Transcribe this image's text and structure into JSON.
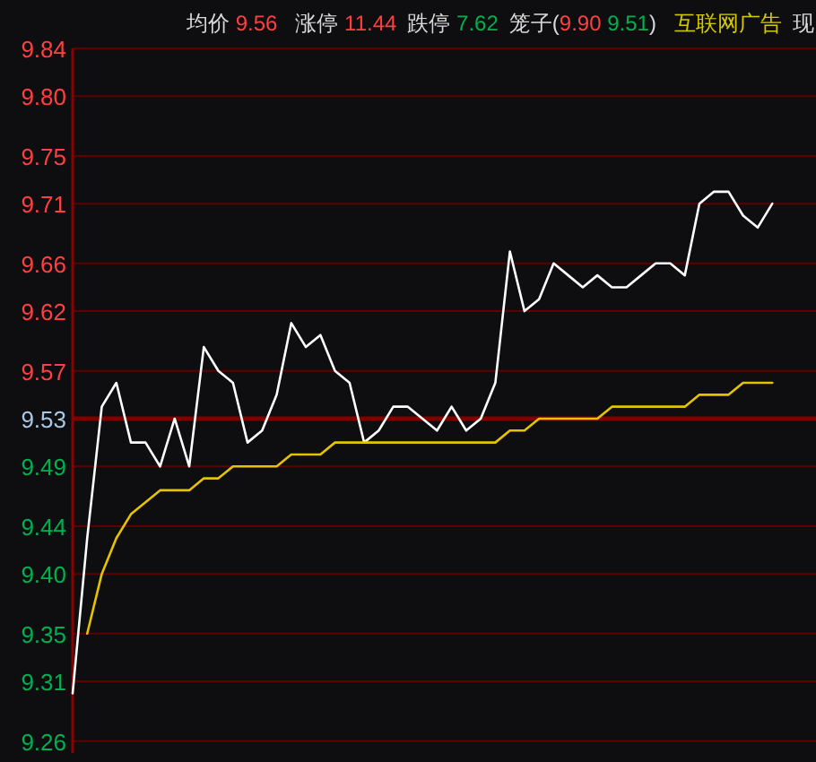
{
  "chart_data": {
    "type": "line",
    "annotations": [
      "均价 9.56",
      "涨停 11.44",
      "跌停 7.62",
      "笼子(9.90 9.51)",
      "互联网广告",
      "现"
    ],
    "categories": [
      null,
      null,
      null,
      null,
      null,
      null,
      null,
      null,
      null,
      null,
      null,
      null,
      null,
      null,
      null,
      null,
      null,
      null,
      null,
      null,
      null,
      null,
      null,
      null,
      null,
      null,
      null,
      null,
      null,
      null,
      null,
      null,
      null,
      null,
      null,
      null,
      null,
      null,
      null,
      null,
      null,
      null,
      null,
      null,
      null,
      null,
      null,
      null,
      null,
      null,
      null,
      null
    ],
    "series": [
      {
        "color": "#ffffff",
        "values": [
          9.3,
          9.43,
          9.54,
          9.56,
          9.51,
          9.51,
          9.49,
          9.53,
          9.49,
          9.59,
          9.57,
          9.56,
          9.51,
          9.52,
          9.55,
          9.61,
          9.59,
          9.6,
          9.57,
          9.56,
          9.51,
          9.52,
          9.54,
          9.54,
          9.53,
          9.52,
          9.54,
          9.52,
          9.53,
          9.56,
          9.67,
          9.62,
          9.63,
          9.66,
          9.65,
          9.64,
          9.65,
          9.64,
          9.64,
          9.65,
          9.66,
          9.66,
          9.65,
          9.71,
          9.72,
          9.72,
          9.7,
          9.69,
          9.71,
          null,
          null,
          null
        ]
      },
      {
        "color": "#e6c300",
        "values": [
          null,
          9.35,
          9.4,
          9.43,
          9.45,
          9.46,
          9.47,
          9.47,
          9.47,
          9.48,
          9.48,
          9.49,
          9.49,
          9.49,
          9.49,
          9.5,
          9.5,
          9.5,
          9.51,
          9.51,
          9.51,
          9.51,
          9.51,
          9.51,
          9.51,
          9.51,
          9.51,
          9.51,
          9.51,
          9.51,
          9.52,
          9.52,
          9.53,
          9.53,
          9.53,
          9.53,
          9.53,
          9.54,
          9.54,
          9.54,
          9.54,
          9.54,
          9.54,
          9.55,
          9.55,
          9.55,
          9.56,
          9.56,
          9.56,
          null,
          null,
          null
        ]
      }
    ],
    "ylim": [
      9.25,
      9.84
    ],
    "yticks": [
      9.84,
      {
        "value": 9.8,
        "label": "9.80"
      },
      9.75,
      9.71,
      9.66,
      9.62,
      9.57,
      9.53,
      9.49,
      9.44,
      {
        "value": 9.4,
        "label": "9.40"
      },
      9.35,
      9.31,
      9.26
    ],
    "ref_lines": [
      {
        "axis": "y",
        "value": 9.53,
        "color": "#800000"
      }
    ],
    "grid": "y",
    "tick_labels": "y"
  }
}
